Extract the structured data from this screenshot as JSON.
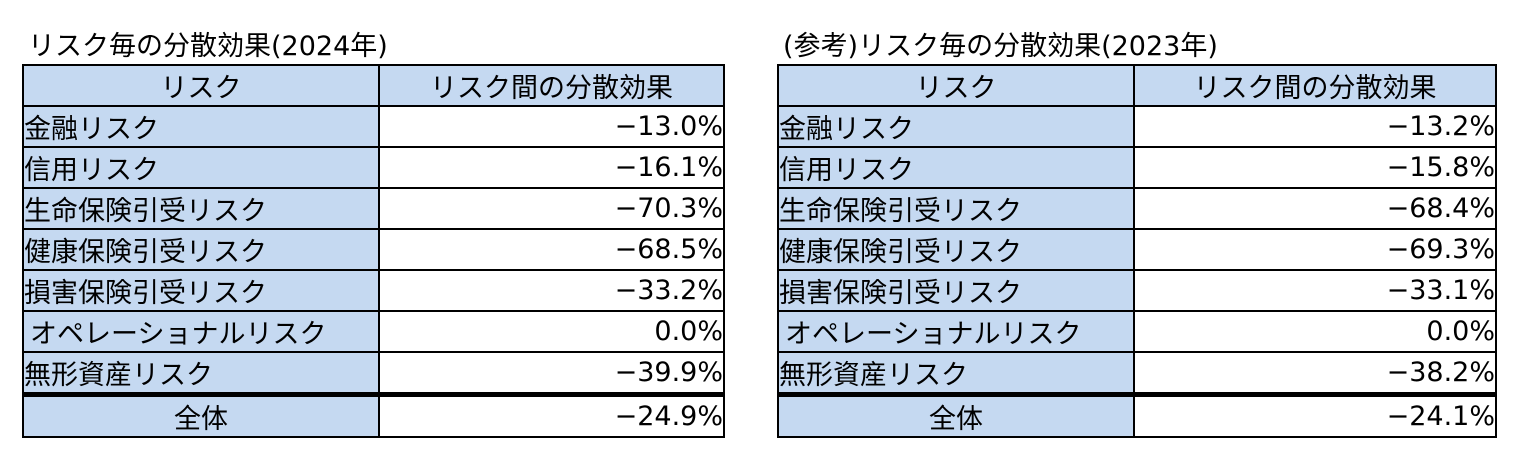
{
  "tables": [
    {
      "title": "リスク毎の分散効果(2024年)",
      "headers": {
        "risk": "リスク",
        "effect": "リスク間の分散効果"
      },
      "rows": [
        {
          "risk": "金融リスク",
          "value": "−13.0%"
        },
        {
          "risk": "信用リスク",
          "value": "−16.1%"
        },
        {
          "risk": "生命保険引受リスク",
          "value": "−70.3%"
        },
        {
          "risk": "健康保険引受リスク",
          "value": "−68.5%"
        },
        {
          "risk": "損害保険引受リスク",
          "value": "−33.2%"
        },
        {
          "risk": "オペレーショナルリスク",
          "value": "0.0%"
        },
        {
          "risk": "無形資産リスク",
          "value": "−39.9%"
        }
      ],
      "total": {
        "label": "全体",
        "value": "−24.9%"
      }
    },
    {
      "title": "(参考)リスク毎の分散効果(2023年)",
      "headers": {
        "risk": "リスク",
        "effect": "リスク間の分散効果"
      },
      "rows": [
        {
          "risk": "金融リスク",
          "value": "−13.2%"
        },
        {
          "risk": "信用リスク",
          "value": "−15.8%"
        },
        {
          "risk": "生命保険引受リスク",
          "value": "−68.4%"
        },
        {
          "risk": "健康保険引受リスク",
          "value": "−69.3%"
        },
        {
          "risk": "損害保険引受リスク",
          "value": "−33.1%"
        },
        {
          "risk": "オペレーショナルリスク",
          "value": "0.0%"
        },
        {
          "risk": "無形資産リスク",
          "value": "−38.2%"
        }
      ],
      "total": {
        "label": "全体",
        "value": "−24.1%"
      }
    }
  ]
}
